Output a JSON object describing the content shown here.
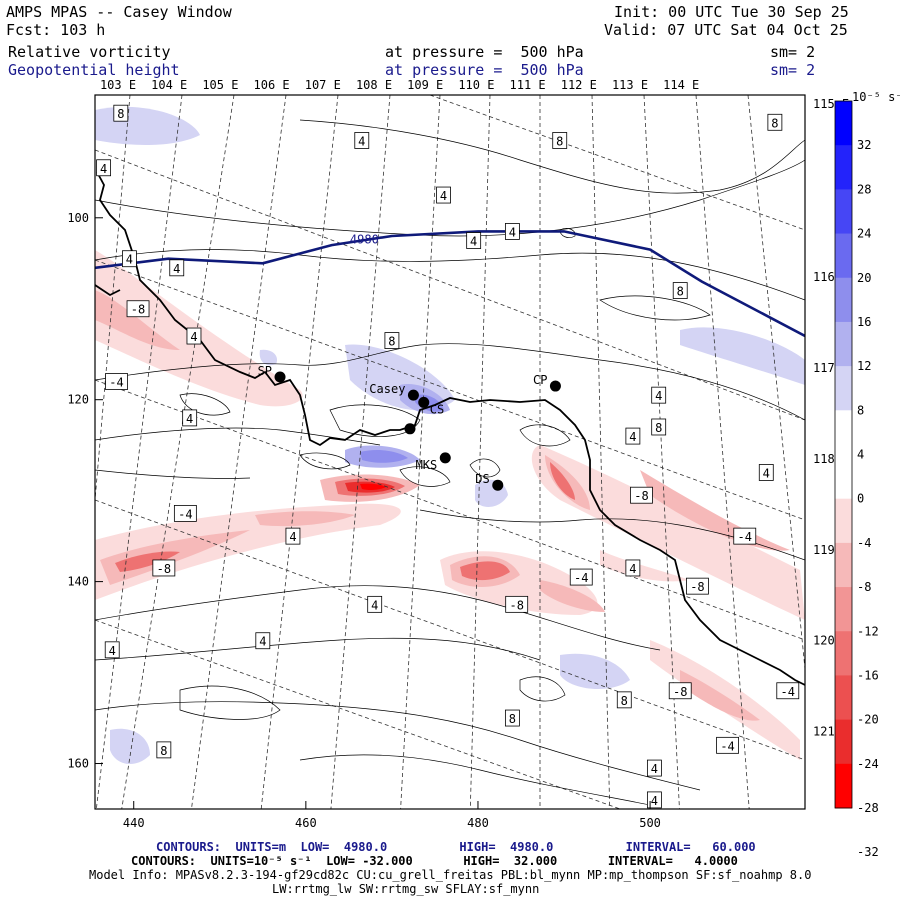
{
  "header": {
    "title": "AMPS MPAS -- Casey Window",
    "init": "Init: 00 UTC Tue 30 Sep 25",
    "fcst": "Fcst: 103 h",
    "valid": "Valid: 07 UTC Sat 04 Oct 25",
    "field1": "Relative vorticity",
    "field1_level": "at pressure =  500 hPa",
    "field1_sm": "sm= 2",
    "field2": "Geopotential height",
    "field2_level": "at pressure =  500 hPa",
    "field2_sm": "sm= 2"
  },
  "footer": {
    "line1": "CONTOURS:  UNITS=m  LOW=  4980.0          HIGH=  4980.0          INTERVAL=   60.000",
    "line2": "CONTOURS:  UNITS=10⁻⁵ s⁻¹  LOW= -32.000       HIGH=  32.000       INTERVAL=   4.0000",
    "line3": "Model Info: MPASv8.2.3-194-gf29cd82c CU:cu_grell_freitas PBL:bl_mynn MP:mp_thompson SF:sf_noahmp 8.0",
    "line4": "LW:rrtmg_lw SW:rrtmg_sw SFLAY:sf_mynn"
  },
  "chart_data": {
    "type": "heatmap",
    "description_free": true,
    "x_ticks": [
      "440",
      "460",
      "480",
      "500"
    ],
    "y_ticks": [
      "100",
      "120",
      "140",
      "160"
    ],
    "x_range": [
      435.5,
      518
    ],
    "y_range": [
      86.5,
      165
    ],
    "lon_labels_top": [
      "103 E",
      "104 E",
      "105 E",
      "106 E",
      "107 E",
      "108 E",
      "109 E",
      "110 E",
      "111 E",
      "112 E",
      "113 E",
      "114 E"
    ],
    "lon_labels_right": [
      {
        "label": "115 E",
        "y": 87.5
      },
      {
        "label": "116 E",
        "y": 106.5
      },
      {
        "label": "117 E",
        "y": 116.5
      },
      {
        "label": "118 E",
        "y": 126.5
      },
      {
        "label": "119 E",
        "y": 136.5
      },
      {
        "label": "120 E",
        "y": 146.5
      },
      {
        "label": "121 E",
        "y": 156.5
      }
    ],
    "colorbar": {
      "unit": "10⁻⁵ s⁻¹",
      "levels": [
        "32",
        "28",
        "24",
        "20",
        "16",
        "12",
        "8",
        "4",
        "0",
        "-4",
        "-8",
        "-12",
        "-16",
        "-20",
        "-24",
        "-28",
        "-32"
      ],
      "colors": [
        "#0000ff",
        "#2323fb",
        "#4646f5",
        "#6a6af0",
        "#8e8eed",
        "#b1b1ef",
        "#d4d4f4",
        "#ffffff",
        "#ffffff",
        "#fbdcdc",
        "#f6b9b9",
        "#f29595",
        "#ee7272",
        "#ec5050",
        "#ea2d2d",
        "#ff0000"
      ]
    },
    "height_contour": {
      "label": "4980",
      "x": [
        435.5,
        444,
        455,
        463,
        470,
        480,
        490,
        500,
        506,
        514,
        518
      ],
      "y": [
        105.5,
        104.5,
        105,
        103,
        102,
        101.5,
        101.5,
        103.5,
        107,
        111,
        113
      ]
    },
    "stations": [
      {
        "name": "SP",
        "x": 457,
        "y": 117.5
      },
      {
        "name": "Casey",
        "x": 472.5,
        "y": 119.5
      },
      {
        "name": "CS",
        "x": 473.7,
        "y": 120.3
      },
      {
        "name": "",
        "x": 472.1,
        "y": 123.2
      },
      {
        "name": "MKS",
        "x": 476.2,
        "y": 126.4
      },
      {
        "name": "DS",
        "x": 482.3,
        "y": 129.4
      },
      {
        "name": "CP",
        "x": 489,
        "y": 118.5
      }
    ],
    "contour_labels": [
      {
        "v": "8",
        "x": 438.5,
        "y": 88.5
      },
      {
        "v": "4",
        "x": 466.5,
        "y": 91.5
      },
      {
        "v": "8",
        "x": 489.5,
        "y": 91.5
      },
      {
        "v": "8",
        "x": 514.5,
        "y": 89.5
      },
      {
        "v": "4",
        "x": 436.5,
        "y": 94.5
      },
      {
        "v": "4",
        "x": 476,
        "y": 97.5
      },
      {
        "v": "4",
        "x": 479.5,
        "y": 102.5
      },
      {
        "v": "4",
        "x": 484,
        "y": 101.5
      },
      {
        "v": "4",
        "x": 439.5,
        "y": 104.5
      },
      {
        "v": "4",
        "x": 445,
        "y": 105.5
      },
      {
        "v": "-8",
        "x": 440.5,
        "y": 110
      },
      {
        "v": "8",
        "x": 503.5,
        "y": 108
      },
      {
        "v": "4",
        "x": 447,
        "y": 113
      },
      {
        "v": "8",
        "x": 470,
        "y": 113.5
      },
      {
        "v": "-4",
        "x": 438,
        "y": 118
      },
      {
        "v": "4",
        "x": 501,
        "y": 119.5
      },
      {
        "v": "4",
        "x": 446.5,
        "y": 122
      },
      {
        "v": "4",
        "x": 498,
        "y": 124
      },
      {
        "v": "8",
        "x": 501,
        "y": 123
      },
      {
        "v": "4",
        "x": 513.5,
        "y": 128
      },
      {
        "v": "-8",
        "x": 499,
        "y": 130.5
      },
      {
        "v": "-4",
        "x": 446,
        "y": 132.5
      },
      {
        "v": "4",
        "x": 458.5,
        "y": 135
      },
      {
        "v": "-4",
        "x": 511,
        "y": 135
      },
      {
        "v": "-8",
        "x": 443.5,
        "y": 138.5
      },
      {
        "v": "4",
        "x": 498,
        "y": 138.5
      },
      {
        "v": "-4",
        "x": 492,
        "y": 139.5
      },
      {
        "v": "-8",
        "x": 505.5,
        "y": 140.5
      },
      {
        "v": "4",
        "x": 468,
        "y": 142.5
      },
      {
        "v": "-8",
        "x": 484.5,
        "y": 142.5
      },
      {
        "v": "4",
        "x": 437.5,
        "y": 147.5
      },
      {
        "v": "4",
        "x": 455,
        "y": 146.5
      },
      {
        "v": "-8",
        "x": 503.5,
        "y": 152
      },
      {
        "v": "8",
        "x": 497,
        "y": 153
      },
      {
        "v": "8",
        "x": 484,
        "y": 155
      },
      {
        "v": "-4",
        "x": 516,
        "y": 152
      },
      {
        "v": "8",
        "x": 443.5,
        "y": 158.5
      },
      {
        "v": "-4",
        "x": 509,
        "y": 158
      },
      {
        "v": "4",
        "x": 500.5,
        "y": 160.5
      },
      {
        "v": "4",
        "x": 500.5,
        "y": 164
      }
    ]
  }
}
